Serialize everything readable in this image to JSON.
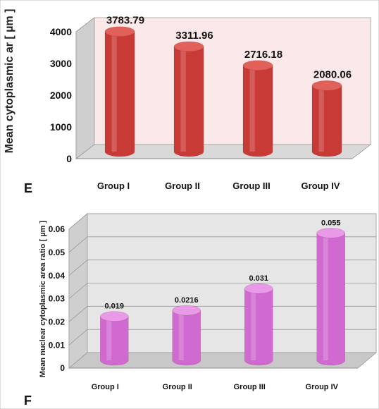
{
  "chart_data": [
    {
      "type": "bar",
      "panel_letter": "E",
      "ylabel": "Mean cytoplasmic ar [ µm ]",
      "categories": [
        "Group I",
        "Group II",
        "Group III",
        "Group IV"
      ],
      "values": [
        3783.79,
        3311.96,
        2716.18,
        2080.06
      ],
      "value_labels": [
        "3783.79",
        "3311.96",
        "2716.18",
        "2080.06"
      ],
      "yticks": [
        "0",
        "1000",
        "2000",
        "3000",
        "4000"
      ],
      "ylim": [
        0,
        4000
      ],
      "grid": false,
      "colors": {
        "bar": "#c83a36",
        "bar_top": "#e0605a",
        "wall": "#fbe9e9",
        "floor": "#d9d9d9"
      }
    },
    {
      "type": "bar",
      "panel_letter": "F",
      "ylabel": "Mean nuclear cytoplasmic area ratio [ µm ]",
      "categories": [
        "Group I",
        "Group II",
        "Group III",
        "Group IV"
      ],
      "values": [
        0.019,
        0.0216,
        0.031,
        0.055
      ],
      "value_labels": [
        "0.019",
        "0.0216",
        "0.031",
        "0.055"
      ],
      "yticks": [
        "0",
        "0.01",
        "0.02",
        "0.03",
        "0.04",
        "0.05",
        "0.06"
      ],
      "ylim": [
        0,
        0.06
      ],
      "grid": true,
      "colors": {
        "bar": "#d06ad0",
        "bar_top": "#e89ae8",
        "wall": "#e6e6e6",
        "floor": "#c8c8c8"
      }
    }
  ]
}
